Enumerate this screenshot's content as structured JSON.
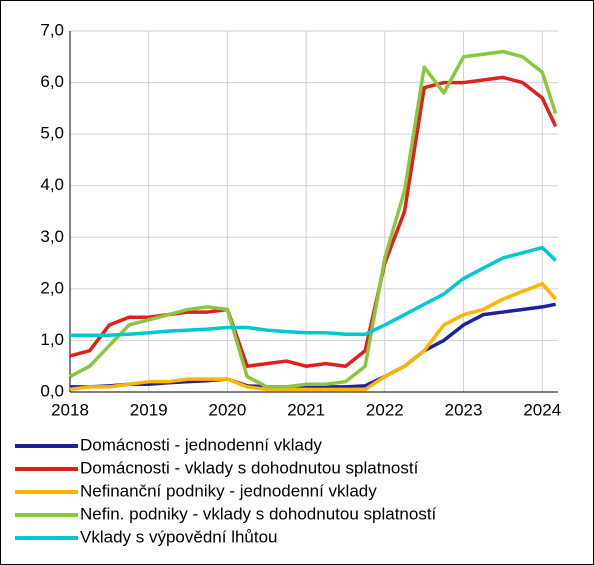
{
  "chart_data": {
    "type": "line",
    "x": [
      2018,
      2018.25,
      2018.5,
      2018.75,
      2019,
      2019.25,
      2019.5,
      2019.75,
      2020,
      2020.25,
      2020.5,
      2020.75,
      2021,
      2021.25,
      2021.5,
      2021.75,
      2022,
      2022.25,
      2022.5,
      2022.75,
      2023,
      2023.25,
      2023.5,
      2023.75,
      2024,
      2024.17
    ],
    "series": [
      {
        "name": "Domácnosti - jednodenní vklady",
        "color": "#1f1f9f",
        "values": [
          0.1,
          0.1,
          0.12,
          0.15,
          0.15,
          0.18,
          0.2,
          0.22,
          0.25,
          0.12,
          0.1,
          0.1,
          0.1,
          0.1,
          0.1,
          0.12,
          0.3,
          0.5,
          0.8,
          1.0,
          1.3,
          1.5,
          1.55,
          1.6,
          1.65,
          1.7
        ]
      },
      {
        "name": "Domácnosti - vklady s dohodnutou splatností",
        "color": "#e0201b",
        "values": [
          0.7,
          0.8,
          1.3,
          1.45,
          1.45,
          1.5,
          1.55,
          1.55,
          1.6,
          0.5,
          0.55,
          0.6,
          0.5,
          0.55,
          0.5,
          0.8,
          2.5,
          3.5,
          5.9,
          6.0,
          6.0,
          6.05,
          6.1,
          6.0,
          5.7,
          5.15
        ]
      },
      {
        "name": "Nefinanční podniky - jednodenní vklady",
        "color": "#ffb400",
        "values": [
          0.05,
          0.1,
          0.1,
          0.15,
          0.2,
          0.2,
          0.25,
          0.25,
          0.25,
          0.1,
          0.05,
          0.05,
          0.05,
          0.05,
          0.05,
          0.05,
          0.3,
          0.5,
          0.8,
          1.3,
          1.5,
          1.6,
          1.8,
          1.95,
          2.1,
          1.8
        ]
      },
      {
        "name": "Nefin. podniky - vklady s dohodnutou splatností",
        "color": "#8cc63f",
        "values": [
          0.3,
          0.5,
          0.9,
          1.3,
          1.4,
          1.5,
          1.6,
          1.65,
          1.6,
          0.3,
          0.1,
          0.1,
          0.15,
          0.15,
          0.2,
          0.5,
          2.6,
          3.9,
          6.3,
          5.8,
          6.5,
          6.55,
          6.6,
          6.5,
          6.2,
          5.4
        ]
      },
      {
        "name": "Vklady s výpovědní lhůtou",
        "color": "#00c8d0",
        "values": [
          1.1,
          1.1,
          1.1,
          1.12,
          1.15,
          1.18,
          1.2,
          1.22,
          1.25,
          1.25,
          1.2,
          1.17,
          1.15,
          1.15,
          1.12,
          1.12,
          1.3,
          1.5,
          1.7,
          1.9,
          2.2,
          2.4,
          2.6,
          2.7,
          2.8,
          2.55
        ]
      }
    ],
    "xlim": [
      2018,
      2024.2
    ],
    "xticks": [
      2018,
      2019,
      2020,
      2021,
      2022,
      2023,
      2024
    ],
    "ylim": [
      0,
      7
    ],
    "yticks": [
      {
        "value": 0,
        "label": "0,0"
      },
      {
        "value": 1,
        "label": "1,0"
      },
      {
        "value": 2,
        "label": "2,0"
      },
      {
        "value": 3,
        "label": "3,0"
      },
      {
        "value": 4,
        "label": "4,0"
      },
      {
        "value": 5,
        "label": "5,0"
      },
      {
        "value": 6,
        "label": "6,0"
      },
      {
        "value": 7,
        "label": "7,0"
      }
    ],
    "grid": true
  }
}
